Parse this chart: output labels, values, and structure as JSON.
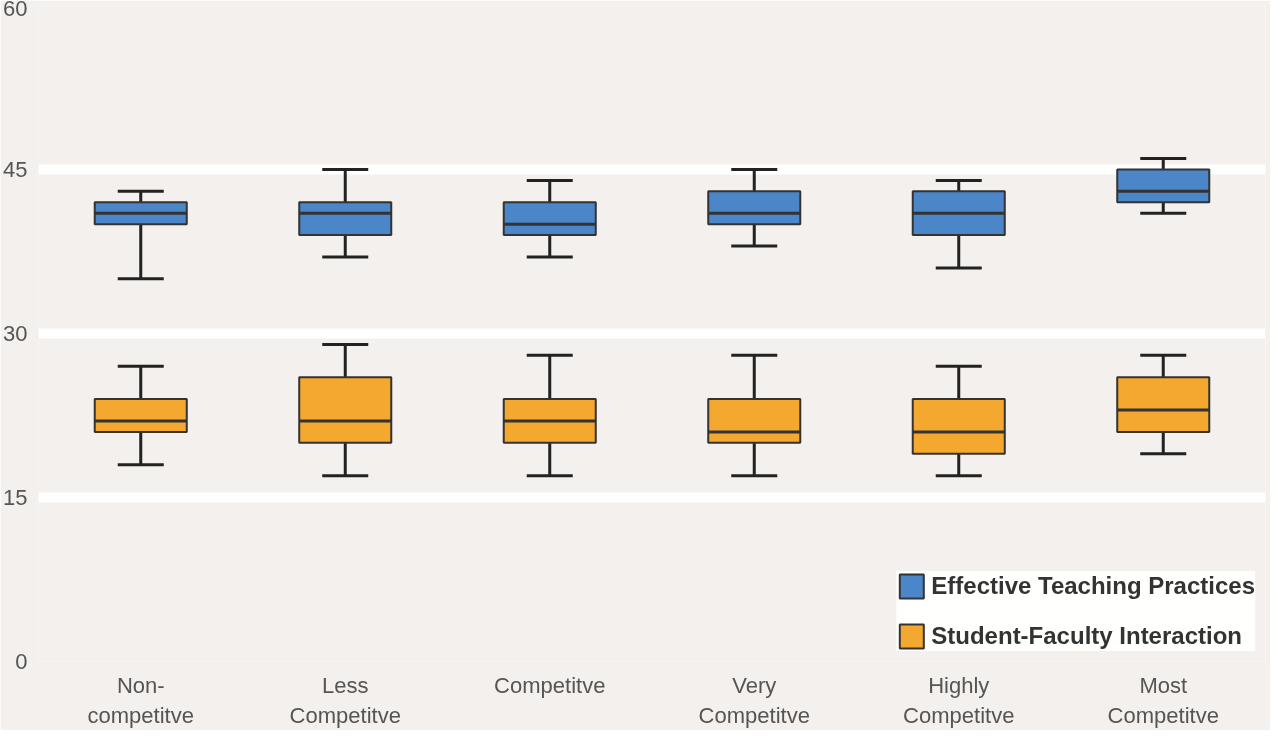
{
  "chart_data": {
    "type": "box",
    "categories": [
      "Non-competitve",
      "Less Competitve",
      "Competitve",
      "Very Competitve",
      "Highly Competitve",
      "Most Competitve"
    ],
    "ylim": [
      0,
      60
    ],
    "yticks": [
      0,
      15,
      30,
      45,
      60
    ],
    "grid": "y",
    "legend": "bottom right",
    "series": [
      {
        "name": "Effective Teaching Practices",
        "color": "#4a86c8",
        "boxes": [
          {
            "low": 35,
            "q1": 40,
            "median": 41,
            "q3": 42,
            "high": 43
          },
          {
            "low": 37,
            "q1": 39,
            "median": 41,
            "q3": 42,
            "high": 45
          },
          {
            "low": 37,
            "q1": 39,
            "median": 40,
            "q3": 42,
            "high": 44
          },
          {
            "low": 38,
            "q1": 40,
            "median": 41,
            "q3": 43,
            "high": 45
          },
          {
            "low": 36,
            "q1": 39,
            "median": 41,
            "q3": 43,
            "high": 44
          },
          {
            "low": 41,
            "q1": 42,
            "median": 43,
            "q3": 45,
            "high": 46
          }
        ]
      },
      {
        "name": "Student-Faculty Interaction",
        "color": "#f5a830",
        "boxes": [
          {
            "low": 18,
            "q1": 21,
            "median": 22,
            "q3": 24,
            "high": 27
          },
          {
            "low": 17,
            "q1": 20,
            "median": 22,
            "q3": 26,
            "high": 29
          },
          {
            "low": 17,
            "q1": 20,
            "median": 22,
            "q3": 24,
            "high": 28
          },
          {
            "low": 17,
            "q1": 20,
            "median": 21,
            "q3": 24,
            "high": 28
          },
          {
            "low": 17,
            "q1": 19,
            "median": 21,
            "q3": 24,
            "high": 27
          },
          {
            "low": 19,
            "q1": 21,
            "median": 23,
            "q3": 26,
            "high": 28
          }
        ]
      }
    ]
  }
}
